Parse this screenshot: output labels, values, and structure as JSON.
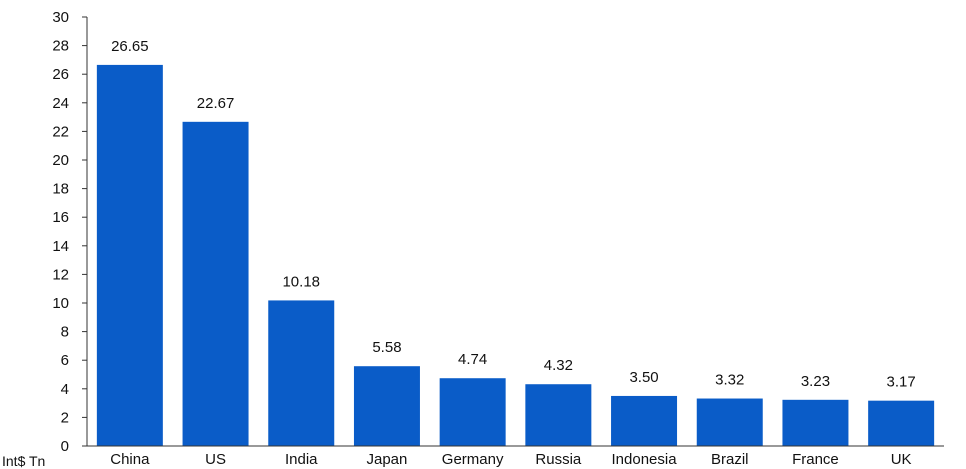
{
  "chart_data": {
    "type": "bar",
    "title": "",
    "xlabel": "",
    "ylabel": "Int$ Tn",
    "ylim": [
      0,
      30
    ],
    "yticks": [
      0,
      2,
      4,
      6,
      8,
      10,
      12,
      14,
      16,
      18,
      20,
      22,
      24,
      26,
      28,
      30
    ],
    "categories": [
      "China",
      "US",
      "India",
      "Japan",
      "Germany",
      "Russia",
      "Indonesia",
      "Brazil",
      "France",
      "UK"
    ],
    "values": [
      26.65,
      22.67,
      10.18,
      5.58,
      4.74,
      4.32,
      3.5,
      3.32,
      3.23,
      3.17
    ],
    "data_labels": [
      "26.65",
      "22.67",
      "10.18",
      "5.58",
      "4.74",
      "4.32",
      "3.50",
      "3.32",
      "3.23",
      "3.17"
    ],
    "bar_color": "#0a5cc8",
    "grid": false,
    "legend": "none"
  }
}
